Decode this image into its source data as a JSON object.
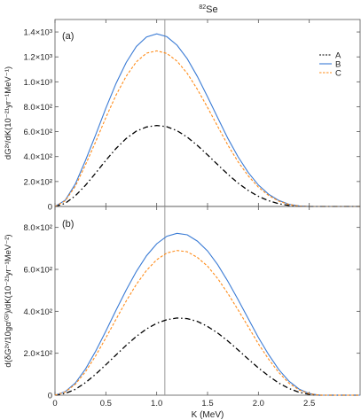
{
  "figure_title_prefix": "82",
  "figure_title_symbol": "Se",
  "chart_data": [
    {
      "type": "line",
      "panel_label": "(a)",
      "xlabel": "",
      "ylabel": "dG²ᵛ/dK(10⁻²¹yr⁻¹MeV⁻¹)",
      "xlim": [
        0,
        3.0
      ],
      "ylim": [
        0,
        1500
      ],
      "yticks": [
        0,
        200,
        400,
        600,
        800,
        1000,
        1200,
        1400
      ],
      "ytick_labels": [
        "0",
        "2.0×10²",
        "4.0×10²",
        "6.0×10²",
        "8.0×10²",
        "1.0×10³",
        "1.2×10³",
        "1.4×10³"
      ],
      "vline_x": 1.08,
      "legend_position": "top-right",
      "x": [
        0,
        0.1,
        0.2,
        0.3,
        0.4,
        0.5,
        0.6,
        0.7,
        0.8,
        0.9,
        1.0,
        1.1,
        1.2,
        1.3,
        1.4,
        1.5,
        1.6,
        1.7,
        1.8,
        1.9,
        2.0,
        2.1,
        2.2,
        2.3,
        2.4,
        2.5,
        2.6,
        2.7,
        2.8,
        2.9,
        3.0
      ],
      "series": [
        {
          "name": "A",
          "style": "dashdot",
          "color": "#000000",
          "values": [
            0,
            25,
            85,
            170,
            268,
            370,
            465,
            545,
            604,
            638,
            650,
            640,
            608,
            556,
            490,
            414,
            335,
            258,
            188,
            128,
            81,
            46,
            22,
            8,
            2,
            0,
            0,
            0,
            0,
            0,
            0
          ]
        },
        {
          "name": "B",
          "style": "solid",
          "color": "#3a7bd5",
          "values": [
            0,
            50,
            180,
            370,
            575,
            788,
            987,
            1155,
            1283,
            1360,
            1385,
            1362,
            1294,
            1185,
            1043,
            880,
            711,
            546,
            398,
            272,
            172,
            98,
            48,
            18,
            4,
            0,
            0,
            0,
            0,
            0,
            0
          ]
        },
        {
          "name": "C",
          "style": "dashed",
          "color": "#ff8c1a",
          "values": [
            0,
            45,
            162,
            335,
            520,
            712,
            893,
            1045,
            1160,
            1230,
            1248,
            1228,
            1166,
            1068,
            940,
            794,
            641,
            492,
            358,
            245,
            155,
            88,
            43,
            16,
            3,
            0,
            0,
            0,
            0,
            0,
            0
          ]
        }
      ]
    },
    {
      "type": "line",
      "panel_label": "(b)",
      "xlabel": "K (MeV)",
      "ylabel": "d(δG²ᵛ/10gα⁽ᴳ⁾)/dK(10⁻²¹yr⁻¹MeV⁻²)",
      "xlim": [
        0,
        3.0
      ],
      "ylim": [
        0,
        900
      ],
      "xticks": [
        0,
        0.5,
        1.0,
        1.5,
        2.0,
        2.5
      ],
      "xtick_labels": [
        "0",
        "0.5",
        "1.0",
        "1.5",
        "2.0",
        "2.5"
      ],
      "yticks": [
        0,
        200,
        400,
        600,
        800
      ],
      "ytick_labels": [
        "0",
        "2.0×10²",
        "4.0×10²",
        "6.0×10²",
        "8.0×10²"
      ],
      "vline_x": 1.08,
      "x": [
        0,
        0.1,
        0.2,
        0.3,
        0.4,
        0.5,
        0.6,
        0.7,
        0.8,
        0.9,
        1.0,
        1.1,
        1.2,
        1.3,
        1.4,
        1.5,
        1.6,
        1.7,
        1.8,
        1.9,
        2.0,
        2.1,
        2.2,
        2.3,
        2.4,
        2.5,
        2.6,
        2.7,
        2.8,
        2.9,
        3.0
      ],
      "series": [
        {
          "name": "A",
          "style": "dashdot",
          "color": "#000000",
          "values": [
            0,
            8,
            28,
            60,
            100,
            145,
            192,
            238,
            280,
            316,
            343,
            360,
            368,
            365,
            352,
            328,
            296,
            258,
            216,
            172,
            130,
            92,
            58,
            32,
            14,
            4,
            0,
            0,
            0,
            0,
            0
          ]
        },
        {
          "name": "B",
          "style": "solid",
          "color": "#3a7bd5",
          "values": [
            0,
            17,
            58,
            125,
            210,
            305,
            405,
            502,
            590,
            665,
            722,
            758,
            772,
            765,
            735,
            688,
            622,
            543,
            456,
            365,
            275,
            194,
            122,
            67,
            29,
            8,
            0,
            0,
            0,
            0,
            0
          ]
        },
        {
          "name": "C",
          "style": "dashed",
          "color": "#ff8c1a",
          "values": [
            0,
            15,
            52,
            112,
            188,
            273,
            362,
            449,
            528,
            595,
            646,
            678,
            690,
            684,
            657,
            615,
            556,
            485,
            407,
            326,
            245,
            172,
            108,
            58,
            25,
            7,
            0,
            0,
            0,
            0,
            0
          ]
        }
      ]
    }
  ]
}
